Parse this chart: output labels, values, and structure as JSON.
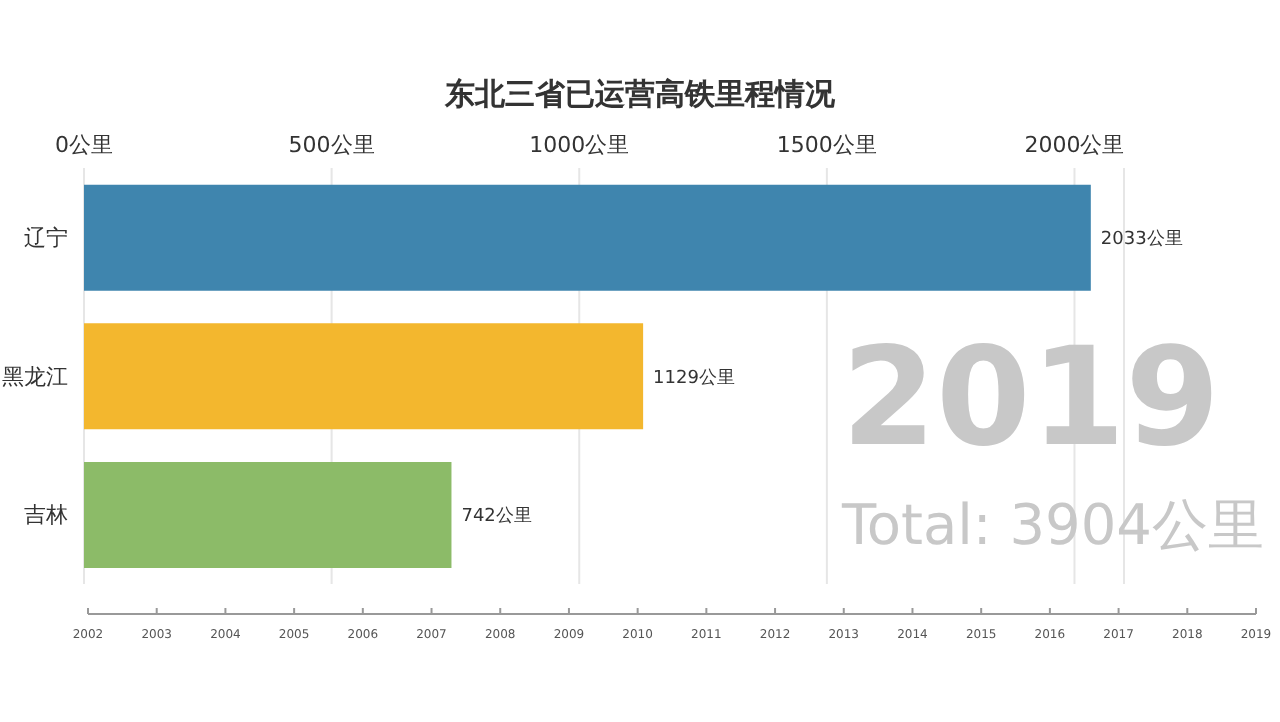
{
  "chart_data": {
    "type": "bar",
    "orientation": "horizontal",
    "title": "东北三省已运营高铁里程情况",
    "categories": [
      "辽宁",
      "黑龙江",
      "吉林"
    ],
    "values": [
      2033,
      1129,
      742
    ],
    "colors": [
      "#3f85ae",
      "#f3b72e",
      "#8cbb68"
    ],
    "value_labels": [
      "2033公里",
      "1129公里",
      "742公里"
    ],
    "xlim": [
      0,
      2100
    ],
    "xticks": [
      {
        "value": 0,
        "label": "0公里"
      },
      {
        "value": 500,
        "label": "500公里"
      },
      {
        "value": 1000,
        "label": "1000公里"
      },
      {
        "value": 1500,
        "label": "1500公里"
      },
      {
        "value": 2000,
        "label": "2000公里"
      }
    ],
    "grid": "x",
    "annotations": [
      "2019",
      "Total: 3904公里",
      "2002",
      "2003",
      "2004",
      "2005",
      "2006",
      "2007",
      "2008",
      "2009",
      "2010",
      "2011",
      "2012",
      "2013",
      "2014",
      "2015",
      "2016",
      "2017",
      "2018",
      "2019"
    ]
  }
}
